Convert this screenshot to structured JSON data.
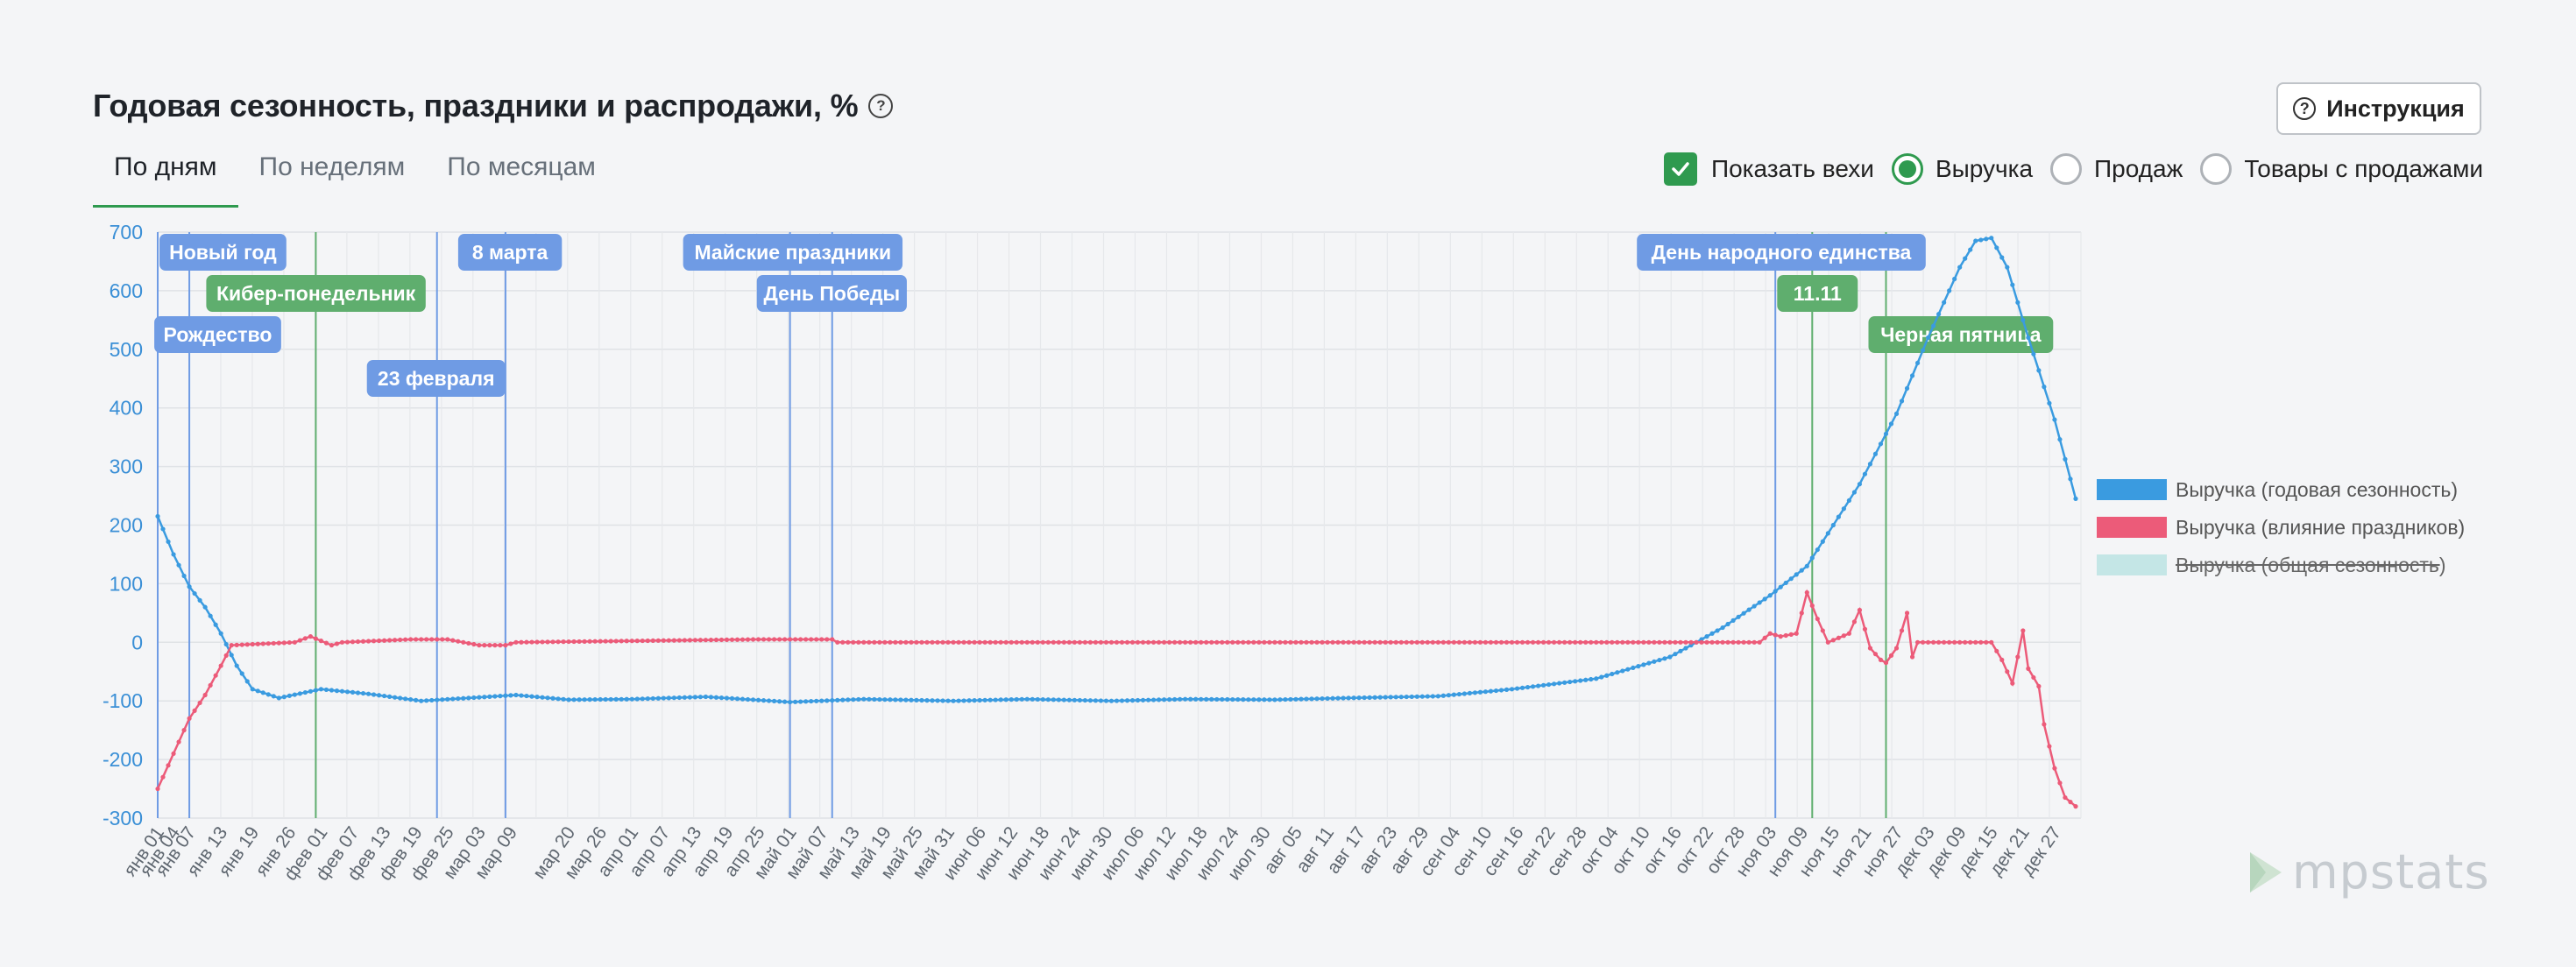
{
  "header": {
    "title": "Годовая сезонность, праздники и распродажи, %",
    "instruction_label": "Инструкция"
  },
  "tabs": [
    {
      "label": "По дням",
      "active": true
    },
    {
      "label": "По неделям",
      "active": false
    },
    {
      "label": "По месяцам",
      "active": false
    }
  ],
  "controls": {
    "show_milestones_label": "Показать вехи",
    "show_milestones_checked": true,
    "radios": [
      {
        "label": "Выручка",
        "selected": true
      },
      {
        "label": "Продаж",
        "selected": false
      },
      {
        "label": "Товары с продажами",
        "selected": false
      }
    ]
  },
  "logo": {
    "text": "mpstats"
  },
  "colors": {
    "accent": "#2f9a4f",
    "series_blue": "#3a9be0",
    "series_red": "#ec5b79",
    "series_teal": "#c4e6e6",
    "milestone_blue": "#6f9be4",
    "milestone_green": "#5fae6e"
  },
  "chart_data": {
    "type": "line",
    "title": "",
    "xlabel": "",
    "ylabel": "",
    "ylim": [
      -300,
      700
    ],
    "yticks": [
      700,
      600,
      500,
      400,
      300,
      200,
      100,
      0,
      -100,
      -200,
      -300
    ],
    "grid": true,
    "legend_position": "right",
    "x_start": "янв 01",
    "x_end": "дек 31",
    "x_tick_labels": [
      "янв 01",
      "янв 04",
      "янв 07",
      "янв 13",
      "янв 19",
      "янв 26",
      "фев 01",
      "фев 07",
      "фев 13",
      "фев 19",
      "фев 25",
      "мар 03",
      "мар 09",
      "мар 20",
      "мар 26",
      "апр 01",
      "апр 07",
      "апр 13",
      "апр 19",
      "апр 25",
      "май 01",
      "май 07",
      "май 13",
      "май 19",
      "май 25",
      "май 31",
      "июн 06",
      "июн 12",
      "июн 18",
      "июн 24",
      "июн 30",
      "июл 06",
      "июл 12",
      "июл 18",
      "июл 24",
      "июл 30",
      "авг 05",
      "авг 11",
      "авг 17",
      "авг 23",
      "авг 29",
      "сен 04",
      "сен 10",
      "сен 16",
      "сен 22",
      "сен 28",
      "окт 04",
      "окт 10",
      "окт 16",
      "окт 22",
      "окт 28",
      "ноя 03",
      "ноя 09",
      "ноя 15",
      "ноя 21",
      "ноя 27",
      "дек 03",
      "дек 09",
      "дек 15",
      "дек 21",
      "дек 27"
    ],
    "series": [
      {
        "name": "Выручка (годовая сезонность)",
        "color": "#3a9be0",
        "visible": true,
        "points": [
          [
            "янв 01",
            215
          ],
          [
            "янв 04",
            150
          ],
          [
            "янв 07",
            95
          ],
          [
            "янв 10",
            60
          ],
          [
            "янв 13",
            15
          ],
          [
            "янв 16",
            -40
          ],
          [
            "янв 19",
            -80
          ],
          [
            "янв 24",
            -95
          ],
          [
            "фев 01",
            -80
          ],
          [
            "фев 10",
            -88
          ],
          [
            "фев 20",
            -100
          ],
          [
            "мар 01",
            -95
          ],
          [
            "мар 10",
            -90
          ],
          [
            "мар 20",
            -98
          ],
          [
            "апр 01",
            -97
          ],
          [
            "апр 15",
            -93
          ],
          [
            "май 01",
            -102
          ],
          [
            "май 15",
            -97
          ],
          [
            "июн 01",
            -100
          ],
          [
            "июн 15",
            -97
          ],
          [
            "июл 01",
            -100
          ],
          [
            "июл 15",
            -97
          ],
          [
            "авг 01",
            -98
          ],
          [
            "авг 15",
            -95
          ],
          [
            "сен 01",
            -92
          ],
          [
            "сен 15",
            -80
          ],
          [
            "окт 01",
            -62
          ],
          [
            "окт 15",
            -25
          ],
          [
            "окт 25",
            25
          ],
          [
            "ноя 03",
            80
          ],
          [
            "ноя 10",
            130
          ],
          [
            "ноя 20",
            270
          ],
          [
            "ноя 27",
            390
          ],
          [
            "дек 03",
            520
          ],
          [
            "дек 09",
            640
          ],
          [
            "дек 12",
            685
          ],
          [
            "дек 15",
            690
          ],
          [
            "дек 18",
            640
          ],
          [
            "дек 22",
            520
          ],
          [
            "дек 27",
            380
          ],
          [
            "дек 31",
            245
          ]
        ]
      },
      {
        "name": "Выручка (влияние праздников)",
        "color": "#ec5b79",
        "visible": true,
        "points": [
          [
            "янв 01",
            -250
          ],
          [
            "янв 04",
            -190
          ],
          [
            "янв 07",
            -130
          ],
          [
            "янв 10",
            -90
          ],
          [
            "янв 13",
            -40
          ],
          [
            "янв 15",
            -5
          ],
          [
            "янв 27",
            0
          ],
          [
            "янв 30",
            10
          ],
          [
            "фев 03",
            -5
          ],
          [
            "фев 05",
            0
          ],
          [
            "фев 18",
            5
          ],
          [
            "фев 25",
            5
          ],
          [
            "мар 03",
            -5
          ],
          [
            "мар 08",
            -5
          ],
          [
            "мар 10",
            0
          ],
          [
            "апр 25",
            5
          ],
          [
            "май 09",
            5
          ],
          [
            "май 10",
            0
          ],
          [
            "ноя 01",
            0
          ],
          [
            "ноя 03",
            15
          ],
          [
            "ноя 05",
            10
          ],
          [
            "ноя 08",
            15
          ],
          [
            "ноя 10",
            85
          ],
          [
            "ноя 12",
            40
          ],
          [
            "ноя 14",
            0
          ],
          [
            "ноя 18",
            15
          ],
          [
            "ноя 20",
            55
          ],
          [
            "ноя 22",
            -10
          ],
          [
            "ноя 24",
            -30
          ],
          [
            "ноя 25",
            -35
          ],
          [
            "ноя 27",
            -10
          ],
          [
            "ноя 29",
            50
          ],
          [
            "ноя 30",
            -25
          ],
          [
            "дек 01",
            0
          ],
          [
            "дек 15",
            0
          ],
          [
            "дек 17",
            -30
          ],
          [
            "дек 19",
            -70
          ],
          [
            "дек 21",
            20
          ],
          [
            "дек 22",
            -45
          ],
          [
            "дек 24",
            -75
          ],
          [
            "дек 25",
            -140
          ],
          [
            "дек 27",
            -215
          ],
          [
            "дек 29",
            -265
          ],
          [
            "дек 31",
            -280
          ]
        ]
      },
      {
        "name": "Выручка (общая сезонность)",
        "color": "#c4e6e6",
        "visible": false,
        "points": []
      }
    ],
    "milestones": [
      {
        "label": "Новый год",
        "date": "янв 01",
        "color": "#6f9be4"
      },
      {
        "label": "Рождество",
        "date": "янв 07",
        "color": "#6f9be4"
      },
      {
        "label": "Кибер-понедельник",
        "date": "янв 31",
        "color": "#5fae6e"
      },
      {
        "label": "23 февраля",
        "date": "фев 23",
        "color": "#6f9be4"
      },
      {
        "label": "8 марта",
        "date": "мар 08",
        "color": "#6f9be4"
      },
      {
        "label": "Майские праздники",
        "date": "май 01",
        "color": "#6f9be4"
      },
      {
        "label": "День Победы",
        "date": "май 09",
        "color": "#6f9be4"
      },
      {
        "label": "День народного единства",
        "date": "ноя 04",
        "color": "#6f9be4"
      },
      {
        "label": "11.11",
        "date": "ноя 11",
        "color": "#5fae6e"
      },
      {
        "label": "Черная пятница",
        "date": "ноя 25",
        "color": "#5fae6e"
      }
    ]
  }
}
